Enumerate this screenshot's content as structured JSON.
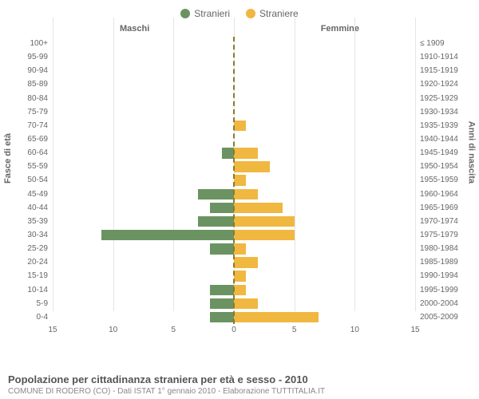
{
  "legend": {
    "male": {
      "label": "Stranieri",
      "color": "#6b9362"
    },
    "female": {
      "label": "Straniere",
      "color": "#f0b840"
    }
  },
  "headers": {
    "male_col": "Maschi",
    "female_col": "Femmine",
    "left_axis_title": "Fasce di età",
    "right_axis_title": "Anni di nascita"
  },
  "chart": {
    "type": "population-pyramid",
    "x_max": 15,
    "x_ticks": [
      15,
      10,
      5,
      0,
      5,
      10,
      15
    ],
    "center_line_color": "#8a7a2a",
    "grid_color": "#e5e5e5",
    "bar_colors": {
      "male": "#6b9362",
      "female": "#f0b840"
    },
    "rows": [
      {
        "age": "100+",
        "birth": "≤ 1909",
        "male": 0,
        "female": 0
      },
      {
        "age": "95-99",
        "birth": "1910-1914",
        "male": 0,
        "female": 0
      },
      {
        "age": "90-94",
        "birth": "1915-1919",
        "male": 0,
        "female": 0
      },
      {
        "age": "85-89",
        "birth": "1920-1924",
        "male": 0,
        "female": 0
      },
      {
        "age": "80-84",
        "birth": "1925-1929",
        "male": 0,
        "female": 0
      },
      {
        "age": "75-79",
        "birth": "1930-1934",
        "male": 0,
        "female": 0
      },
      {
        "age": "70-74",
        "birth": "1935-1939",
        "male": 0,
        "female": 1
      },
      {
        "age": "65-69",
        "birth": "1940-1944",
        "male": 0,
        "female": 0
      },
      {
        "age": "60-64",
        "birth": "1945-1949",
        "male": 1,
        "female": 2
      },
      {
        "age": "55-59",
        "birth": "1950-1954",
        "male": 0,
        "female": 3
      },
      {
        "age": "50-54",
        "birth": "1955-1959",
        "male": 0,
        "female": 1
      },
      {
        "age": "45-49",
        "birth": "1960-1964",
        "male": 3,
        "female": 2
      },
      {
        "age": "40-44",
        "birth": "1965-1969",
        "male": 2,
        "female": 4
      },
      {
        "age": "35-39",
        "birth": "1970-1974",
        "male": 3,
        "female": 5
      },
      {
        "age": "30-34",
        "birth": "1975-1979",
        "male": 11,
        "female": 5
      },
      {
        "age": "25-29",
        "birth": "1980-1984",
        "male": 2,
        "female": 1
      },
      {
        "age": "20-24",
        "birth": "1985-1989",
        "male": 0,
        "female": 2
      },
      {
        "age": "15-19",
        "birth": "1990-1994",
        "male": 0,
        "female": 1
      },
      {
        "age": "10-14",
        "birth": "1995-1999",
        "male": 2,
        "female": 1
      },
      {
        "age": "5-9",
        "birth": "2000-2004",
        "male": 2,
        "female": 2
      },
      {
        "age": "0-4",
        "birth": "2005-2009",
        "male": 2,
        "female": 7
      }
    ]
  },
  "footer": {
    "title": "Popolazione per cittadinanza straniera per età e sesso - 2010",
    "subtitle": "COMUNE DI RODERO (CO) - Dati ISTAT 1° gennaio 2010 - Elaborazione TUTTITALIA.IT"
  }
}
